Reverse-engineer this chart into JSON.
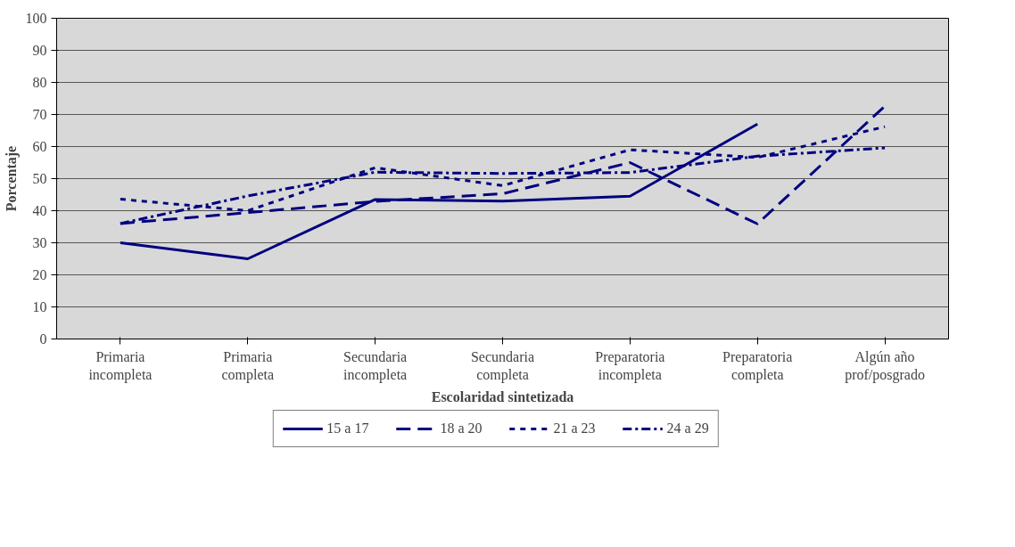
{
  "chart_data": {
    "type": "line",
    "xlabel": "Escolaridad sintetizada",
    "ylabel": "Porcentaje",
    "categories": [
      "Primaria\nincompleta",
      "Primaria\ncompleta",
      "Secundaria\nincompleta",
      "Secundaria\ncompleta",
      "Preparatoria\nincompleta",
      "Preparatoria\ncompleta",
      "Algún año\nprof/posgrado"
    ],
    "series": [
      {
        "name": "15 a 17",
        "color": "#000080",
        "line_style": "solid",
        "values": [
          30,
          25,
          43.5,
          43,
          44.5,
          67,
          null
        ]
      },
      {
        "name": "18 a 20",
        "color": "#000080",
        "line_style": "dashed",
        "values": [
          36,
          39.4,
          42.9,
          45.3,
          55,
          35.9,
          72.6
        ]
      },
      {
        "name": "21 a 23",
        "color": "#000080",
        "line_style": "dotted",
        "values": [
          43.6,
          40,
          53.4,
          47.8,
          59,
          56.6,
          66.2
        ]
      },
      {
        "name": "24 a 29",
        "color": "#000080",
        "line_style": "dashdot",
        "values": [
          36,
          44.6,
          52,
          51.6,
          51.9,
          57,
          59.6
        ]
      }
    ],
    "ylim": [
      0,
      100
    ],
    "yticks": [
      0,
      10,
      20,
      30,
      40,
      50,
      60,
      70,
      80,
      90,
      100
    ],
    "grid": "y",
    "legend": "bottom",
    "marker": "none"
  }
}
